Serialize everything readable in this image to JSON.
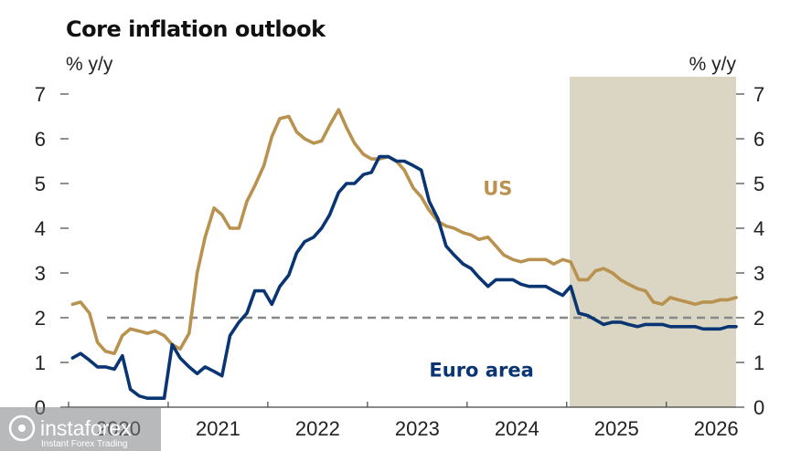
{
  "chart_data": {
    "type": "line",
    "title": "Core inflation outlook",
    "y_unit_left": "% y/y",
    "y_unit_right": "% y/y",
    "ylim": [
      0,
      7
    ],
    "yticks": [
      "0",
      "1",
      "2",
      "3",
      "4",
      "5",
      "6",
      "7"
    ],
    "xlim": [
      2020.0,
      2026.7
    ],
    "xtick_labels": [
      {
        "label": "2020",
        "x": 2020.5
      },
      {
        "label": "2021",
        "x": 2021.5
      },
      {
        "label": "2022",
        "x": 2022.5
      },
      {
        "label": "2023",
        "x": 2023.5
      },
      {
        "label": "2024",
        "x": 2024.5
      },
      {
        "label": "2025",
        "x": 2025.5
      },
      {
        "label": "2026",
        "x": 2026.5
      }
    ],
    "forecast_shading": {
      "from": 2025.03,
      "to": 2026.7
    },
    "reference_line": {
      "y": 2.0,
      "style": "dashed",
      "color": "#888888"
    },
    "series": [
      {
        "name": "US",
        "color": "#B8924E",
        "x": [
          2020.04,
          2020.12,
          2020.21,
          2020.29,
          2020.37,
          2020.46,
          2020.54,
          2020.62,
          2020.71,
          2020.79,
          2020.87,
          2020.96,
          2021.04,
          2021.12,
          2021.21,
          2021.29,
          2021.37,
          2021.46,
          2021.54,
          2021.62,
          2021.71,
          2021.79,
          2021.87,
          2021.96,
          2022.04,
          2022.12,
          2022.21,
          2022.29,
          2022.37,
          2022.46,
          2022.54,
          2022.62,
          2022.71,
          2022.79,
          2022.87,
          2022.96,
          2023.04,
          2023.12,
          2023.21,
          2023.29,
          2023.37,
          2023.46,
          2023.54,
          2023.62,
          2023.71,
          2023.79,
          2023.87,
          2023.96,
          2024.04,
          2024.12,
          2024.21,
          2024.29,
          2024.37,
          2024.46,
          2024.54,
          2024.62,
          2024.71,
          2024.79,
          2024.87,
          2024.96,
          2025.04,
          2025.12,
          2025.21,
          2025.29,
          2025.37,
          2025.46,
          2025.54,
          2025.62,
          2025.71,
          2025.79,
          2025.87,
          2025.96,
          2026.04,
          2026.12,
          2026.21,
          2026.29,
          2026.37,
          2026.46,
          2026.54,
          2026.62,
          2026.7
        ],
        "y": [
          2.3,
          2.35,
          2.1,
          1.45,
          1.25,
          1.2,
          1.6,
          1.75,
          1.7,
          1.65,
          1.7,
          1.6,
          1.4,
          1.3,
          1.65,
          3.0,
          3.8,
          4.45,
          4.3,
          4.0,
          4.0,
          4.6,
          4.95,
          5.4,
          6.05,
          6.45,
          6.5,
          6.15,
          6.0,
          5.9,
          5.95,
          6.3,
          6.65,
          6.25,
          5.9,
          5.65,
          5.55,
          5.55,
          5.6,
          5.5,
          5.3,
          4.9,
          4.7,
          4.4,
          4.15,
          4.05,
          4.0,
          3.9,
          3.85,
          3.75,
          3.8,
          3.6,
          3.4,
          3.3,
          3.25,
          3.3,
          3.3,
          3.3,
          3.2,
          3.3,
          3.25,
          2.85,
          2.85,
          3.05,
          3.1,
          3.0,
          2.85,
          2.75,
          2.65,
          2.6,
          2.35,
          2.3,
          2.45,
          2.4,
          2.35,
          2.3,
          2.35,
          2.35,
          2.4,
          2.4,
          2.45
        ]
      },
      {
        "name": "Euro area",
        "color": "#0A3573",
        "x": [
          2020.04,
          2020.12,
          2020.21,
          2020.29,
          2020.37,
          2020.46,
          2020.54,
          2020.62,
          2020.71,
          2020.79,
          2020.87,
          2020.96,
          2021.04,
          2021.12,
          2021.21,
          2021.29,
          2021.37,
          2021.46,
          2021.54,
          2021.62,
          2021.71,
          2021.79,
          2021.87,
          2021.96,
          2022.04,
          2022.12,
          2022.21,
          2022.29,
          2022.37,
          2022.46,
          2022.54,
          2022.62,
          2022.71,
          2022.79,
          2022.87,
          2022.96,
          2023.04,
          2023.12,
          2023.21,
          2023.29,
          2023.37,
          2023.46,
          2023.54,
          2023.62,
          2023.71,
          2023.79,
          2023.87,
          2023.96,
          2024.04,
          2024.12,
          2024.21,
          2024.29,
          2024.37,
          2024.46,
          2024.54,
          2024.62,
          2024.71,
          2024.79,
          2024.87,
          2024.96,
          2025.04,
          2025.12,
          2025.21,
          2025.29,
          2025.37,
          2025.46,
          2025.54,
          2025.62,
          2025.71,
          2025.79,
          2025.87,
          2025.96,
          2026.04,
          2026.12,
          2026.21,
          2026.29,
          2026.37,
          2026.46,
          2026.54,
          2026.62,
          2026.7
        ],
        "y": [
          1.1,
          1.2,
          1.05,
          0.9,
          0.9,
          0.85,
          1.15,
          0.4,
          0.25,
          0.2,
          0.2,
          0.2,
          1.4,
          1.1,
          0.9,
          0.75,
          0.9,
          0.8,
          0.7,
          1.6,
          1.9,
          2.1,
          2.6,
          2.6,
          2.3,
          2.7,
          2.95,
          3.45,
          3.7,
          3.8,
          4.0,
          4.3,
          4.8,
          5.0,
          5.0,
          5.2,
          5.25,
          5.6,
          5.6,
          5.5,
          5.5,
          5.4,
          5.3,
          4.6,
          4.2,
          3.6,
          3.4,
          3.2,
          3.1,
          2.9,
          2.7,
          2.85,
          2.85,
          2.85,
          2.75,
          2.7,
          2.7,
          2.7,
          2.6,
          2.5,
          2.7,
          2.1,
          2.05,
          1.95,
          1.85,
          1.9,
          1.9,
          1.85,
          1.8,
          1.85,
          1.85,
          1.85,
          1.8,
          1.8,
          1.8,
          1.8,
          1.75,
          1.75,
          1.75,
          1.8,
          1.8
        ]
      }
    ],
    "annotations": [
      {
        "text": "US",
        "x": 2024.16,
        "y": 4.75,
        "color": "#B8924E"
      },
      {
        "text": "Euro area",
        "x": 2023.62,
        "y": 0.68,
        "color": "#0A3573"
      }
    ]
  },
  "watermark": {
    "brand": "instaforex",
    "tagline": "Instant Forex Trading"
  }
}
